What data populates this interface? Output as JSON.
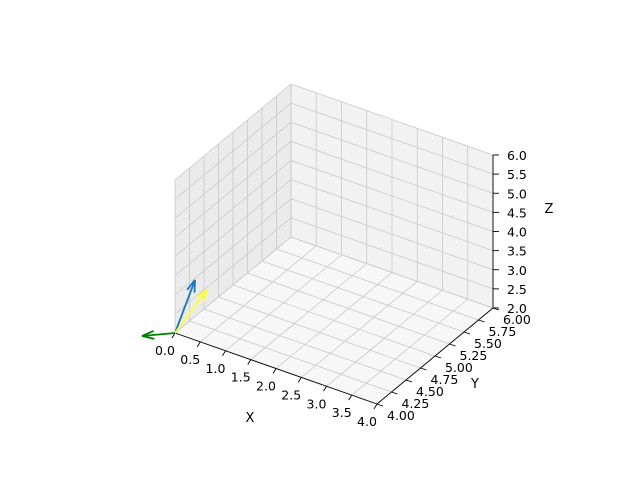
{
  "chart_data": {
    "type": "quiver3d",
    "xlabel": "X",
    "ylabel": "Y",
    "zlabel": "Z",
    "xlim": [
      0.0,
      4.0
    ],
    "ylim": [
      4.0,
      6.0
    ],
    "zlim": [
      2.0,
      6.0
    ],
    "x_ticks": [
      "0.0",
      "0.5",
      "1.0",
      "1.5",
      "2.0",
      "2.5",
      "3.0",
      "3.5",
      "4.0"
    ],
    "y_ticks": [
      "4.00",
      "4.25",
      "4.50",
      "4.75",
      "5.00",
      "5.25",
      "5.50",
      "5.75",
      "6.00"
    ],
    "z_ticks": [
      "2.0",
      "2.5",
      "3.0",
      "3.5",
      "4.0",
      "4.5",
      "5.0",
      "5.5",
      "6.0"
    ],
    "grid": true,
    "vectors": [
      {
        "origin": [
          0,
          4,
          2
        ],
        "direction": [
          0,
          0,
          1
        ],
        "color": "#1f77b4"
      },
      {
        "origin": [
          0,
          4,
          2
        ],
        "direction": [
          0,
          1,
          0
        ],
        "color": "#ffff33"
      },
      {
        "origin": [
          0,
          4,
          2
        ],
        "direction": [
          -1,
          0,
          0
        ],
        "color": "#008000"
      }
    ]
  }
}
